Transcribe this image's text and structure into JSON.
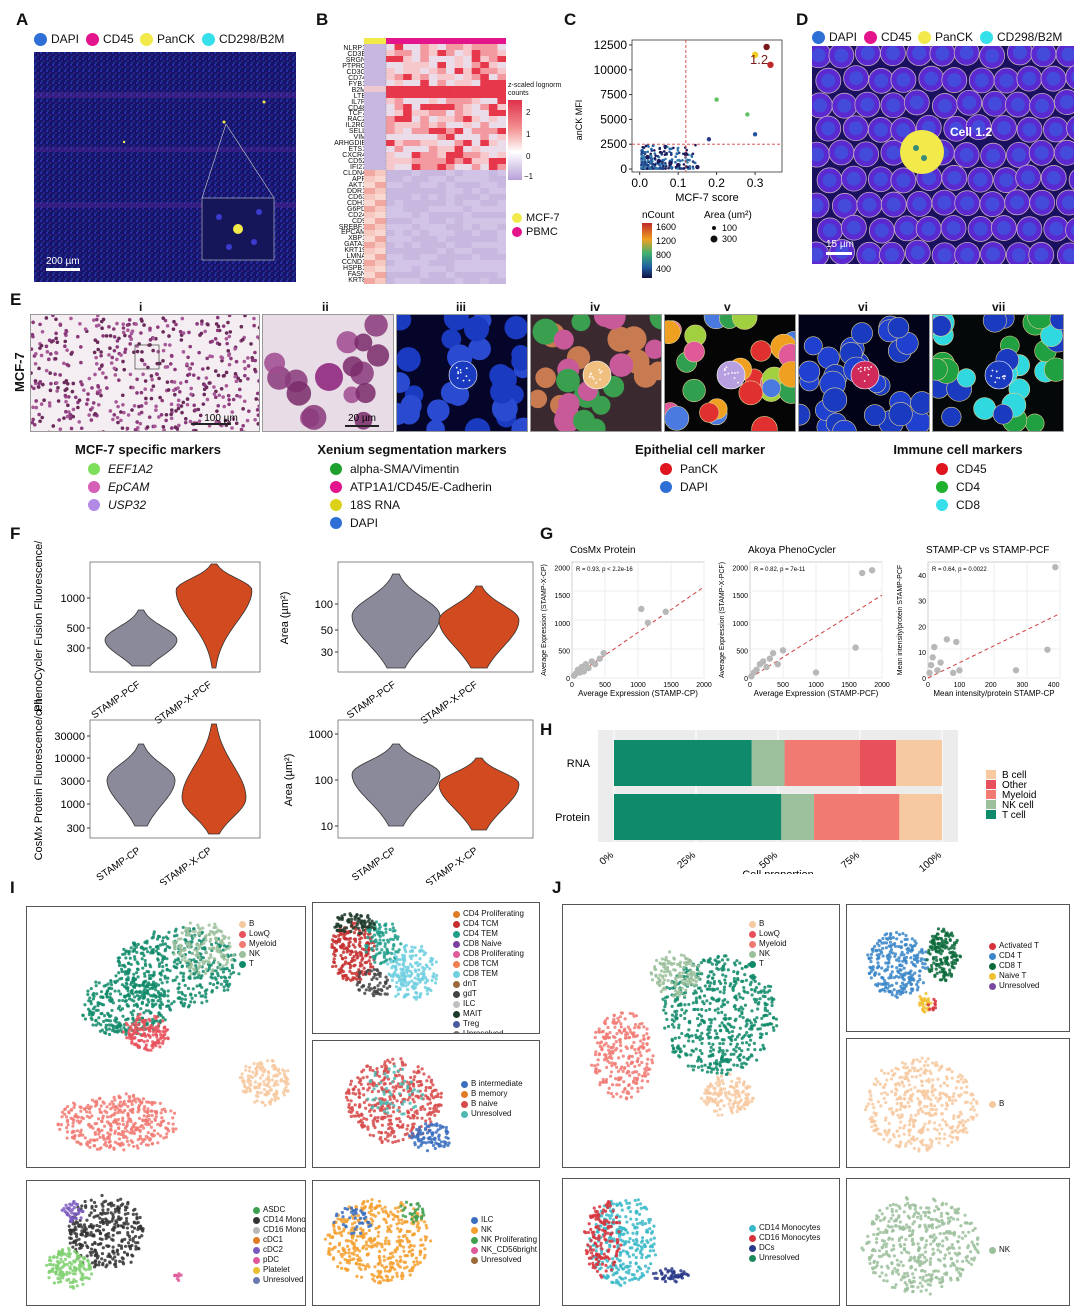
{
  "panels": {
    "A": "A",
    "B": "B",
    "C": "C",
    "D": "D",
    "E": "E",
    "F": "F",
    "G": "G",
    "H": "H",
    "I": "I",
    "J": "J"
  },
  "colors": {
    "dapi": "#2e6fd6",
    "cd45": "#e3148c",
    "panck": "#f2ea4b",
    "cd298": "#35e0ea",
    "violin_gray": "#8a8a9a",
    "violin_orange": "#d24a1f",
    "tcell": "#0f8a6a",
    "nkcell": "#9cbf9c",
    "myeloid": "#f17a73",
    "other": "#e8505b",
    "bcell": "#f7c9a0"
  },
  "panelA": {
    "legend": [
      "DAPI",
      "CD45",
      "PanCK",
      "CD298/B2M"
    ],
    "scalebar": "200 µm"
  },
  "panelB": {
    "genes": [
      "NLRP1",
      "CD3E",
      "SRGN",
      "PTPRC",
      "CD3G",
      "CD74",
      "FYB1",
      "B2M",
      "LTB",
      "IL7R",
      "CD48",
      "TCF7",
      "RAC2",
      "IL2RG",
      "SELL",
      "VIM",
      "ARHGDIB",
      "ETS1",
      "CXCR4",
      "CD52",
      "IFI27",
      "CLDN4",
      "APP",
      "AKT1",
      "DDR1",
      "CD63",
      "CDH1",
      "G6PD",
      "CD24",
      "CD9",
      "SREBF1",
      "EPCAM",
      "XBP1",
      "GATA3",
      "KRT19",
      "LMNA",
      "CCND1",
      "HSPB1",
      "FASN",
      "KRT8"
    ],
    "scale_title": "z-scaled lognorm counts",
    "scale_ticks": [
      "2",
      "1",
      "0",
      "−1"
    ],
    "legend": [
      {
        "label": "MCF-7",
        "color": "#f2ea4b"
      },
      {
        "label": "PBMC",
        "color": "#e3148c"
      }
    ]
  },
  "panelC": {
    "ylabel": "anCK MFI",
    "xlabel": "MCF-7 score",
    "yticks": [
      "12500",
      "10000",
      "7500",
      "5000",
      "2500",
      "0"
    ],
    "xticks": [
      "0.0",
      "0.1",
      "0.2",
      "0.3"
    ],
    "annotation": "1.2",
    "ncount_title": "nCount",
    "ncount_ticks": [
      "1600",
      "1200",
      "800",
      "400"
    ],
    "area_title": "Area (um²)",
    "area_ticks": [
      "100",
      "300"
    ]
  },
  "panelD": {
    "legend": [
      "DAPI",
      "CD45",
      "PanCK",
      "CD298/B2M"
    ],
    "cell_label": "Cell 1.2",
    "scalebar": "15 µm"
  },
  "panelE": {
    "side_label": "MCF-7",
    "subpanels": [
      "i",
      "ii",
      "iii",
      "iv",
      "v",
      "vi",
      "vii"
    ],
    "scalebar_i": "100 µm",
    "scalebar_ii": "20 µm",
    "groups": [
      {
        "title": "MCF-7 specific markers",
        "items": [
          {
            "label": "EEF1A2",
            "color": "#7ee05a",
            "italic": true
          },
          {
            "label": "EpCAM",
            "color": "#d65fb8",
            "italic": true
          },
          {
            "label": "USP32",
            "color": "#b28ae6",
            "italic": true
          }
        ]
      },
      {
        "title": "Xenium segmentation markers",
        "items": [
          {
            "label": "alpha-SMA/Vimentin",
            "color": "#1fa02e"
          },
          {
            "label": "ATP1A1/CD45/E-Cadherin",
            "color": "#e3148c"
          },
          {
            "label": "18S RNA",
            "color": "#dcd21c"
          },
          {
            "label": "DAPI",
            "color": "#2e6fd6"
          }
        ]
      },
      {
        "title": "Epithelial cell marker",
        "items": [
          {
            "label": "PanCK",
            "color": "#e0141e"
          },
          {
            "label": "DAPI",
            "color": "#2e6fd6"
          }
        ]
      },
      {
        "title": "Immune cell markers",
        "items": [
          {
            "label": "CD45",
            "color": "#e0141e"
          },
          {
            "label": "CD4",
            "color": "#1fb02e"
          },
          {
            "label": "CD8",
            "color": "#35e0ea"
          }
        ]
      }
    ]
  },
  "panelF": {
    "top_left_ylabel": "PhenoCycler Fusion Fluorescence/cell",
    "top_left_ticks": [
      "1000",
      "500",
      "300"
    ],
    "top_left_x": [
      "STAMP-PCF",
      "STAMP-X-PCF"
    ],
    "top_right_ylabel": "Area (µm²)",
    "top_right_ticks": [
      "100",
      "50",
      "30"
    ],
    "top_right_x": [
      "STAMP-PCF",
      "STAMP-X-PCF"
    ],
    "bot_left_ylabel": "CosMx Protein Fluorescence/cell",
    "bot_left_ticks": [
      "30000",
      "10000",
      "3000",
      "1000",
      "300"
    ],
    "bot_left_x": [
      "STAMP-CP",
      "STAMP-X-CP"
    ],
    "bot_right_ylabel": "Area (µm²)",
    "bot_right_ticks": [
      "1000",
      "100",
      "10"
    ],
    "bot_right_x": [
      "STAMP-CP",
      "STAMP-X-CP"
    ]
  },
  "panelG": {
    "plots": [
      {
        "title": "CosMx Protein",
        "stat": "R = 0.93, p < 2.2e-16",
        "ylabel": "Average Expression (STAMP-X-CP)",
        "xlabel": "Average Expression (STAMP-CP)",
        "yticks": [
          "2000",
          "1500",
          "1000",
          "500",
          "0"
        ],
        "xticks": [
          "0",
          "500",
          "1000",
          "1500",
          "2000"
        ]
      },
      {
        "title": "Akoya PhenoCycler",
        "stat": "R = 0.82, p = 7e-11",
        "ylabel": "Average Expression (STAMP-X-PCF)",
        "xlabel": "Average Expression (STAMP-PCF)",
        "yticks": [
          "2000",
          "1500",
          "1000",
          "500",
          "0"
        ],
        "xticks": [
          "0",
          "500",
          "1000",
          "1500",
          "2000"
        ]
      },
      {
        "title": "STAMP-CP vs STAMP-PCF",
        "stat": "R = 0.64, p = 0.0022",
        "ylabel": "Mean intensity/protein STAMP-PCF",
        "xlabel": "Mean intensity/protein STAMP-CP",
        "yticks": [
          "40",
          "30",
          "20",
          "10",
          "0"
        ],
        "xticks": [
          "0",
          "100",
          "200",
          "300",
          "400"
        ]
      }
    ]
  },
  "panelH": {
    "rows": [
      "RNA",
      "Protein"
    ],
    "xlabel": "Cell proportion",
    "xticks": [
      "0%",
      "25%",
      "50%",
      "75%",
      "100%"
    ],
    "legend": [
      {
        "label": "B cell",
        "color": "#f7c9a0"
      },
      {
        "label": "Other",
        "color": "#e8505b"
      },
      {
        "label": "Myeloid",
        "color": "#f17a73"
      },
      {
        "label": "NK cell",
        "color": "#9cbf9c"
      },
      {
        "label": "T cell",
        "color": "#0f8a6a"
      }
    ]
  },
  "chart_data": [
    {
      "type": "bar",
      "orientation": "horizontal",
      "stacked": true,
      "categories": [
        "RNA",
        "Protein"
      ],
      "series": [
        {
          "name": "T cell",
          "values": [
            0.42,
            0.51
          ]
        },
        {
          "name": "NK cell",
          "values": [
            0.1,
            0.1
          ]
        },
        {
          "name": "Myeloid",
          "values": [
            0.23,
            0.26
          ]
        },
        {
          "name": "Other",
          "values": [
            0.11,
            0.0
          ]
        },
        {
          "name": "B cell",
          "values": [
            0.14,
            0.13
          ]
        }
      ],
      "title": "",
      "xlabel": "Cell proportion",
      "ylabel": "",
      "xlim": [
        0,
        1
      ],
      "legend": "right"
    },
    {
      "type": "scatter",
      "title": "CosMx Protein",
      "xlabel": "Average Expression (STAMP-CP)",
      "ylabel": "Average Expression (STAMP-X-CP)",
      "xlim": [
        0,
        2000
      ],
      "ylim": [
        0,
        2100
      ],
      "x": [
        30,
        60,
        90,
        120,
        150,
        180,
        210,
        250,
        300,
        350,
        420,
        480,
        1050,
        1150,
        1420
      ],
      "y": [
        40,
        80,
        150,
        100,
        200,
        120,
        250,
        180,
        300,
        250,
        350,
        450,
        1250,
        1000,
        1200
      ],
      "fit": "dashed"
    },
    {
      "type": "scatter",
      "title": "Akoya PhenoCycler",
      "xlabel": "Average Expression (STAMP-PCF)",
      "ylabel": "Average Expression (STAMP-X-PCF)",
      "xlim": [
        0,
        2000
      ],
      "ylim": [
        0,
        2100
      ],
      "x": [
        20,
        60,
        100,
        150,
        200,
        250,
        300,
        350,
        420,
        500,
        1000,
        1600,
        1700,
        1850
      ],
      "y": [
        30,
        100,
        150,
        250,
        300,
        200,
        350,
        450,
        250,
        500,
        100,
        550,
        1900,
        1950
      ],
      "fit": "dashed"
    },
    {
      "type": "scatter",
      "title": "STAMP-CP vs STAMP-PCF",
      "xlabel": "Mean intensity/protein STAMP-CP",
      "ylabel": "Mean intensity/protein STAMP-PCF",
      "xlim": [
        0,
        420
      ],
      "ylim": [
        0,
        45
      ],
      "x": [
        5,
        10,
        15,
        20,
        30,
        40,
        60,
        80,
        90,
        100,
        280,
        380,
        405
      ],
      "y": [
        2,
        5,
        8,
        12,
        3,
        6,
        15,
        2,
        14,
        3,
        3,
        11,
        43
      ],
      "fit": "dashed"
    },
    {
      "type": "scatter",
      "title": "",
      "xlabel": "MCF-7 score",
      "ylabel": "anCK MFI",
      "xlim": [
        -0.02,
        0.37
      ],
      "ylim": [
        -300,
        13000
      ],
      "x": [
        0.33,
        0.34,
        0.3,
        0.28,
        0.2,
        0.3,
        0.18,
        0.02,
        0.05,
        0.08,
        0.1,
        0.12,
        0.15
      ],
      "y": [
        12300,
        10500,
        11500,
        5500,
        7000,
        3500,
        3000,
        1200,
        800,
        600,
        400,
        1500,
        200
      ]
    }
  ],
  "panelI": {
    "main_legend": [
      {
        "label": "B",
        "color": "#f7c9a0"
      },
      {
        "label": "LowQ",
        "color": "#e8505b"
      },
      {
        "label": "Myeloid",
        "color": "#f17a73"
      },
      {
        "label": "NK",
        "color": "#9cbf9c"
      },
      {
        "label": "T",
        "color": "#0f8a6a"
      }
    ],
    "t_legend": [
      {
        "label": "CD4 Proliferating",
        "color": "#e07b26"
      },
      {
        "label": "CD4 TCM",
        "color": "#c62e2e"
      },
      {
        "label": "CD4 TEM",
        "color": "#1f9e89"
      },
      {
        "label": "CD8 Naive",
        "color": "#7b3fa0"
      },
      {
        "label": "CD8 Proliferating",
        "color": "#e05a9a"
      },
      {
        "label": "CD8 TCM",
        "color": "#f08050"
      },
      {
        "label": "CD8 TEM",
        "color": "#6ecfe0"
      },
      {
        "label": "dnT",
        "color": "#9a6a3a"
      },
      {
        "label": "gdT",
        "color": "#444444"
      },
      {
        "label": "ILC",
        "color": "#c0c0c0"
      },
      {
        "label": "MAIT",
        "color": "#1e3a2a"
      },
      {
        "label": "Treg",
        "color": "#4a5aa0"
      },
      {
        "label": "Unresolved",
        "color": "#777777"
      }
    ],
    "b_legend": [
      {
        "label": "B intermediate",
        "color": "#3a6fc0"
      },
      {
        "label": "B memory",
        "color": "#e07b26"
      },
      {
        "label": "B naive",
        "color": "#d84a4a"
      },
      {
        "label": "Unresolved",
        "color": "#4fb8b0"
      }
    ],
    "m_legend": [
      {
        "label": "ASDC",
        "color": "#3fa050"
      },
      {
        "label": "CD14 Mono",
        "color": "#333333"
      },
      {
        "label": "CD16 Mono",
        "color": "#b8b8b8"
      },
      {
        "label": "cDC1",
        "color": "#e07b26"
      },
      {
        "label": "cDC2",
        "color": "#7b5ac0"
      },
      {
        "label": "pDC",
        "color": "#e05a9a"
      },
      {
        "label": "Platelet",
        "color": "#e8c030"
      },
      {
        "label": "Unresolved",
        "color": "#6a7ab0"
      }
    ],
    "nk_legend": [
      {
        "label": "ILC",
        "color": "#3a6fc0"
      },
      {
        "label": "NK",
        "color": "#f5a030"
      },
      {
        "label": "NK Proliferating",
        "color": "#3fa050"
      },
      {
        "label": "NK_CD56bright",
        "color": "#e05a9a"
      },
      {
        "label": "Unresolved",
        "color": "#9a6a3a"
      }
    ]
  },
  "panelJ": {
    "main_legend": [
      {
        "label": "B",
        "color": "#f7c9a0"
      },
      {
        "label": "LowQ",
        "color": "#e8505b"
      },
      {
        "label": "Myeloid",
        "color": "#f17a73"
      },
      {
        "label": "NK",
        "color": "#9cbf9c"
      },
      {
        "label": "T",
        "color": "#0f8a6a"
      }
    ],
    "t_legend": [
      {
        "label": "Activated T",
        "color": "#d8323c"
      },
      {
        "label": "CD4 T",
        "color": "#3a86c8"
      },
      {
        "label": "CD8 T",
        "color": "#0a6a3a"
      },
      {
        "label": "Naive T",
        "color": "#f0c030"
      },
      {
        "label": "Unresolved",
        "color": "#7a4aa0"
      }
    ],
    "b_legend": [
      {
        "label": "B",
        "color": "#f7c9a0"
      }
    ],
    "m_legend": [
      {
        "label": "CD14 Monocytes",
        "color": "#3ab8c8"
      },
      {
        "label": "CD16 Monocytes",
        "color": "#d8323c"
      },
      {
        "label": "DCs",
        "color": "#2a3a8a"
      },
      {
        "label": "Unresolved",
        "color": "#1a8a5a"
      }
    ],
    "nk_legend": [
      {
        "label": "NK",
        "color": "#9cbf9c"
      }
    ]
  }
}
